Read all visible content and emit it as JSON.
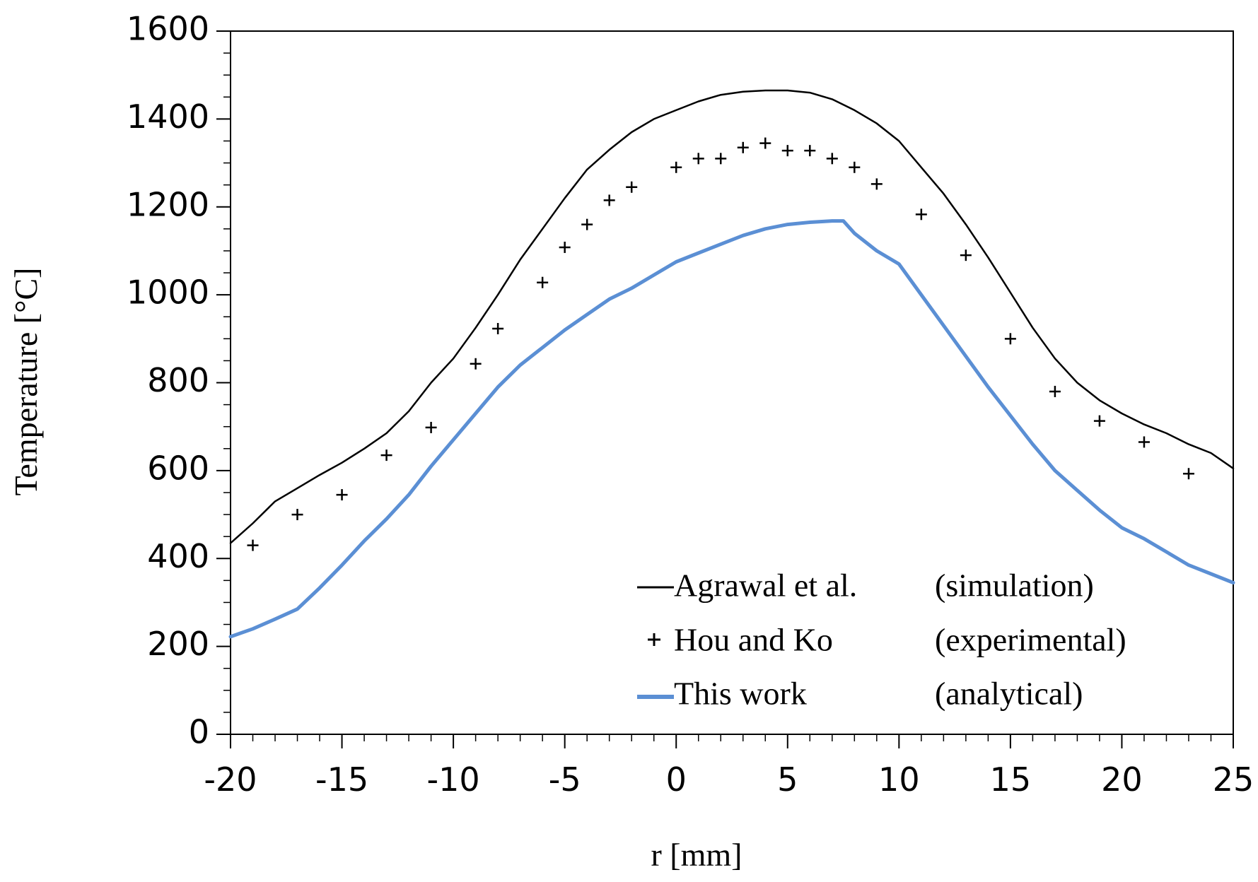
{
  "chart_data": {
    "type": "line",
    "title": "",
    "xlabel": "r [mm]",
    "ylabel": "Temperature [°C]",
    "xlim": [
      -20,
      25
    ],
    "ylim": [
      0,
      1600
    ],
    "x_ticks": [
      -20,
      -15,
      -10,
      -5,
      0,
      5,
      10,
      15,
      20,
      25
    ],
    "x_tick_labels": [
      "-20",
      "-15",
      "-10",
      "-5",
      "0",
      "5",
      "10",
      "15",
      "20",
      "25"
    ],
    "y_ticks": [
      0,
      200,
      400,
      600,
      800,
      1000,
      1200,
      1400,
      1600
    ],
    "y_tick_labels": [
      "0",
      "200",
      "400",
      "600",
      "800",
      "1000",
      "1200",
      "1400",
      "1600"
    ],
    "grid": false,
    "legend_position": "bottom-right",
    "series": [
      {
        "name": "Agrawal et al.",
        "note": "(simulation)",
        "style": "line",
        "color": "#000000",
        "x": [
          -20,
          -19,
          -18,
          -17,
          -16,
          -15,
          -14,
          -13,
          -12,
          -11,
          -10,
          -9,
          -8,
          -7,
          -6,
          -5,
          -4,
          -3,
          -2,
          -1,
          0,
          1,
          2,
          3,
          4,
          5,
          6,
          7,
          8,
          9,
          10,
          11,
          12,
          13,
          14,
          15,
          16,
          17,
          18,
          19,
          20,
          21,
          22,
          23,
          24,
          25
        ],
        "y": [
          435,
          480,
          530,
          560,
          590,
          618,
          650,
          685,
          735,
          800,
          855,
          925,
          1000,
          1080,
          1150,
          1220,
          1285,
          1330,
          1370,
          1400,
          1420,
          1440,
          1455,
          1462,
          1465,
          1465,
          1460,
          1445,
          1420,
          1390,
          1350,
          1290,
          1230,
          1160,
          1085,
          1005,
          925,
          855,
          800,
          760,
          730,
          705,
          685,
          660,
          640,
          605
        ]
      },
      {
        "name": "Hou and Ko",
        "note": "(experimental)",
        "style": "marker",
        "marker": "+",
        "color": "#000000",
        "x": [
          -19,
          -17,
          -15,
          -13,
          -11,
          -9,
          -8,
          -6,
          -5,
          -4,
          -3,
          -2,
          0,
          1,
          2,
          3,
          4,
          5,
          6,
          7,
          8,
          9,
          11,
          13,
          15,
          17,
          19,
          21,
          23
        ],
        "y": [
          430,
          500,
          545,
          635,
          698,
          843,
          923,
          1028,
          1108,
          1160,
          1215,
          1245,
          1290,
          1310,
          1310,
          1335,
          1345,
          1328,
          1328,
          1310,
          1290,
          1252,
          1183,
          1090,
          900,
          780,
          713,
          665,
          593
        ]
      },
      {
        "name": "This work",
        "note": "(analytical)",
        "style": "line",
        "color": "#5b8fd4",
        "x": [
          -20,
          -19,
          -18,
          -17,
          -16,
          -15,
          -14,
          -13,
          -12,
          -11,
          -10,
          -9,
          -8,
          -7,
          -6,
          -5,
          -4,
          -3,
          -2,
          -1,
          0,
          1,
          2,
          3,
          4,
          5,
          6,
          7,
          7.5,
          8,
          9,
          10,
          11,
          12,
          13,
          14,
          15,
          16,
          17,
          18,
          19,
          20,
          21,
          22,
          23,
          24,
          25
        ],
        "y": [
          222,
          240,
          262,
          285,
          333,
          385,
          440,
          490,
          545,
          610,
          670,
          730,
          790,
          840,
          880,
          920,
          955,
          990,
          1015,
          1045,
          1075,
          1095,
          1115,
          1135,
          1150,
          1160,
          1165,
          1168,
          1168,
          1140,
          1100,
          1070,
          1000,
          930,
          860,
          790,
          725,
          660,
          600,
          555,
          510,
          470,
          445,
          415,
          385,
          365,
          345
        ]
      }
    ]
  }
}
